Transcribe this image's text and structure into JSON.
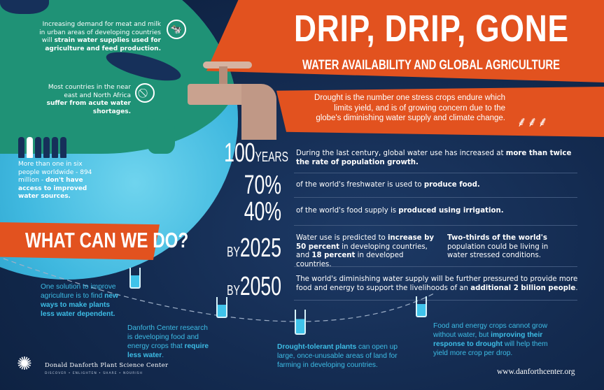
{
  "header": {
    "title": "DRIP, DRIP, GONE",
    "subtitle": "WATER AVAILABILITY AND GLOBAL AGRICULTURE",
    "intro": "Drought is the number one stress crops endure which limits yield, and is of growing concern due to the globe's diminishing water supply and climate change."
  },
  "globe_notes": [
    {
      "pre": "Increasing demand for meat and milk in urban areas of developing countries will ",
      "bold": "strain water supplies used for agriculture and feed production.",
      "post": "",
      "icon": "cow-icon"
    },
    {
      "pre": "Most countries in the near east and North Africa ",
      "bold": "suffer from acute water shortages.",
      "post": "",
      "icon": "no-water-icon"
    },
    {
      "pre": "More than one in six people worldwide - 894 million - ",
      "bold": "don't have access to improved water sources.",
      "post": "",
      "icon": "people-icon"
    }
  ],
  "stats": [
    {
      "num": "100",
      "unit": "YEARS",
      "pre": "During the last century, global water use has increased at ",
      "bold": "more than twice the rate of population growth.",
      "post": ""
    },
    {
      "num": "70%",
      "unit": "",
      "pre": "of the world's freshwater is used to ",
      "bold": "produce food.",
      "post": ""
    },
    {
      "num": "40%",
      "unit": "",
      "pre": "of the world's food supply is ",
      "bold": "produced using irrigation.",
      "post": ""
    },
    {
      "num": "2025",
      "unit": "BY",
      "pre": "Water use is predicted to ",
      "bold": "increase by 50 percent",
      "post": " in developing countries, and ",
      "bold2": "18 percent",
      "post2": " in developed countries.",
      "side_bold": "Two-thirds of the world's",
      "side_post": " population could be living in water stressed conditions."
    },
    {
      "num": "2050",
      "unit": "BY",
      "pre": "The world's diminishing water supply will be further pressured to provide more food and energy to support the livelihoods of an ",
      "bold": "additional 2 billion people",
      "post": "."
    }
  ],
  "what_can_we_do": "WHAT CAN WE DO?",
  "solutions": [
    {
      "pre": "One solution to improve agriculture is to find ",
      "bold": "new ways to make plants less water dependent.",
      "post": ""
    },
    {
      "pre": "Danforth Center research is developing food and energy crops that ",
      "bold": "require less water",
      "post": "."
    },
    {
      "pre": "",
      "bold": "Drought-tolerant plants",
      "post": " can open up large, once-unusable areas of land for farming in developing countries."
    },
    {
      "pre": "Food and energy crops cannot grow without water, but ",
      "bold": "improving their response to drought",
      "post": " will help them yield more crop per drop."
    }
  ],
  "footer": {
    "org": "Donald Danforth Plant Science Center",
    "tagline": "DISCOVER • ENLIGHTEN • SHARE • NOURISH",
    "url": "www.danforthcenter.org"
  },
  "colors": {
    "orange": "#e2521f",
    "navy": "#132a4f",
    "accent_blue": "#3dbde6",
    "land": "#1f9276"
  }
}
